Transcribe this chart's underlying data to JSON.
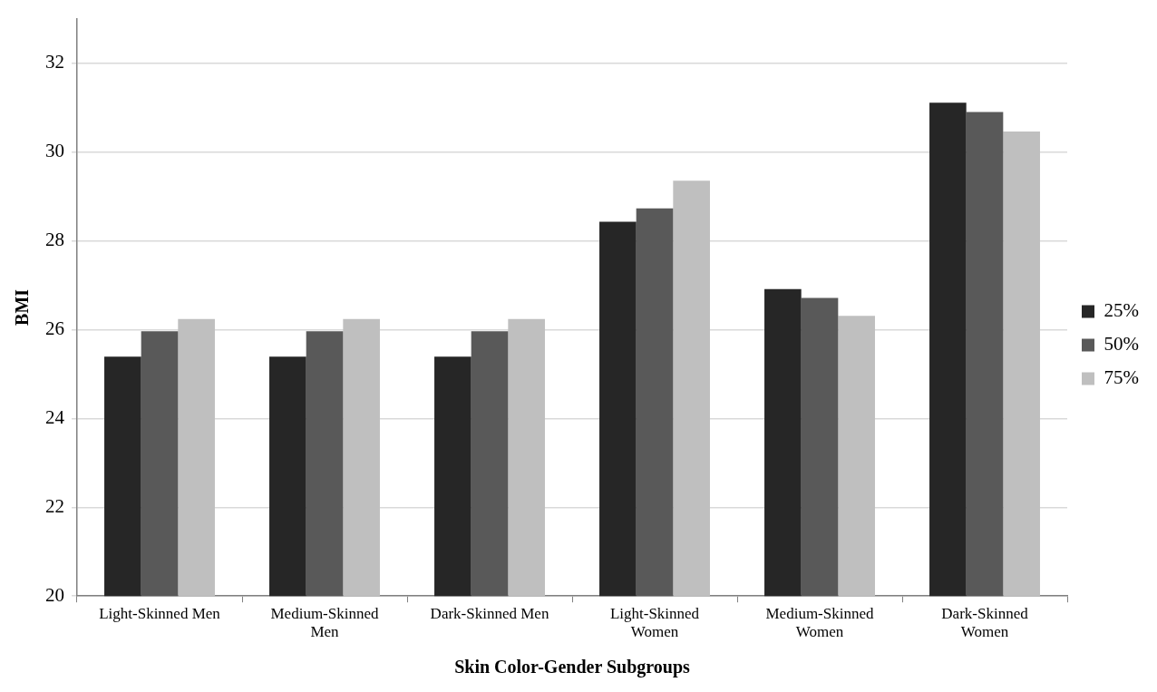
{
  "chart_data": {
    "type": "bar",
    "xlabel": "Skin Color-Gender Subgroups",
    "ylabel": "BMI",
    "categories": [
      "Light-Skinned Men",
      "Medium-Skinned Men",
      "Dark-Skinned Men",
      "Light-Skinned Women",
      "Medium-Skinned Women",
      "Dark-Skinned Women"
    ],
    "series": [
      {
        "name": "25%",
        "color": "#262626",
        "values": [
          25.39,
          25.39,
          25.39,
          28.43,
          26.91,
          31.11
        ]
      },
      {
        "name": "50%",
        "color": "#595959",
        "values": [
          25.96,
          25.96,
          25.96,
          28.73,
          26.71,
          30.9
        ]
      },
      {
        "name": "75%",
        "color": "#bfbfbf",
        "values": [
          26.24,
          26.24,
          26.24,
          29.35,
          26.31,
          30.46
        ]
      }
    ],
    "ylim": [
      20,
      33
    ],
    "yticks": [
      20,
      22,
      24,
      26,
      28,
      30,
      32
    ],
    "grid": "y",
    "legend": "right"
  }
}
